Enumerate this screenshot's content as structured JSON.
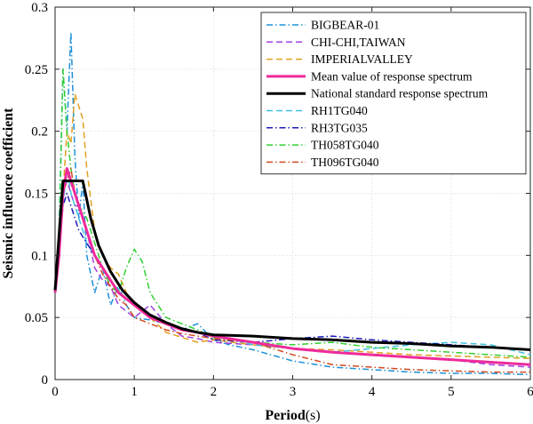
{
  "chart_data": {
    "type": "line",
    "xlabel": "Period",
    "xunit": "(s)",
    "ylabel": "Seismic influence coefficient",
    "xlim": [
      0,
      6
    ],
    "ylim": [
      0,
      0.3
    ],
    "xticks": [
      0,
      1,
      2,
      3,
      4,
      5,
      6
    ],
    "yticks": [
      0,
      0.05,
      0.1,
      0.15,
      0.2,
      0.25,
      0.3
    ],
    "xtick_labels": [
      "0",
      "1",
      "2",
      "3",
      "4",
      "5",
      "6"
    ],
    "ytick_labels": [
      "0",
      "0.05",
      "0.1",
      "0.15",
      "0.2",
      "0.25",
      "0.3"
    ],
    "grid": true,
    "legend_position": "top-right",
    "series": [
      {
        "name": "BIGBEAR-01",
        "color": "#1e90d8",
        "dash": "dashdot",
        "width": 1.5,
        "x": [
          0,
          0.05,
          0.1,
          0.15,
          0.2,
          0.25,
          0.3,
          0.35,
          0.4,
          0.5,
          0.6,
          0.7,
          0.8,
          0.9,
          1.0,
          1.2,
          1.4,
          1.6,
          1.8,
          2.0,
          2.2,
          2.5,
          3.0,
          3.5,
          4.0,
          4.5,
          5.0,
          5.5,
          6.0
        ],
        "y": [
          0.07,
          0.12,
          0.25,
          0.2,
          0.28,
          0.18,
          0.13,
          0.16,
          0.1,
          0.07,
          0.09,
          0.06,
          0.075,
          0.06,
          0.05,
          0.048,
          0.045,
          0.04,
          0.045,
          0.032,
          0.028,
          0.024,
          0.015,
          0.01,
          0.008,
          0.006,
          0.005,
          0.005,
          0.004
        ]
      },
      {
        "name": "CHI-CHI,TAIWAN",
        "color": "#a040e0",
        "dash": "dash",
        "width": 1.5,
        "x": [
          0,
          0.05,
          0.1,
          0.15,
          0.2,
          0.25,
          0.3,
          0.4,
          0.5,
          0.6,
          0.7,
          0.8,
          0.9,
          1.0,
          1.2,
          1.4,
          1.6,
          1.8,
          2.0,
          2.5,
          3.0,
          3.5,
          4.0,
          4.5,
          5.0,
          5.5,
          6.0
        ],
        "y": [
          0.07,
          0.1,
          0.15,
          0.16,
          0.15,
          0.14,
          0.14,
          0.12,
          0.09,
          0.08,
          0.075,
          0.06,
          0.055,
          0.05,
          0.06,
          0.045,
          0.035,
          0.033,
          0.03,
          0.028,
          0.025,
          0.022,
          0.02,
          0.018,
          0.016,
          0.012,
          0.01
        ]
      },
      {
        "name": "IMPERIALVALLEY",
        "color": "#e0a020",
        "dash": "dash",
        "width": 1.5,
        "x": [
          0,
          0.05,
          0.1,
          0.15,
          0.2,
          0.25,
          0.3,
          0.35,
          0.4,
          0.5,
          0.6,
          0.7,
          0.8,
          0.9,
          1.0,
          1.2,
          1.4,
          1.6,
          1.8,
          2.0,
          2.5,
          3.0,
          3.5,
          4.0,
          4.5,
          5.0,
          5.5,
          6.0
        ],
        "y": [
          0.07,
          0.1,
          0.15,
          0.2,
          0.19,
          0.23,
          0.22,
          0.21,
          0.17,
          0.12,
          0.1,
          0.09,
          0.085,
          0.07,
          0.06,
          0.05,
          0.038,
          0.034,
          0.03,
          0.032,
          0.028,
          0.025,
          0.024,
          0.022,
          0.02,
          0.019,
          0.018,
          0.017
        ]
      },
      {
        "name": "Mean value of response spectrum",
        "color": "#ee2a9b",
        "dash": "solid",
        "width": 3,
        "x": [
          0,
          0.05,
          0.1,
          0.15,
          0.2,
          0.25,
          0.3,
          0.4,
          0.5,
          0.6,
          0.7,
          0.8,
          0.9,
          1.0,
          1.2,
          1.4,
          1.6,
          1.8,
          2.0,
          2.5,
          3.0,
          3.5,
          4.0,
          4.5,
          5.0,
          5.5,
          6.0
        ],
        "y": [
          0.07,
          0.1,
          0.15,
          0.17,
          0.16,
          0.15,
          0.14,
          0.12,
          0.1,
          0.09,
          0.08,
          0.07,
          0.065,
          0.06,
          0.05,
          0.045,
          0.04,
          0.038,
          0.035,
          0.03,
          0.025,
          0.022,
          0.02,
          0.018,
          0.016,
          0.014,
          0.012
        ]
      },
      {
        "name": "National standard response spectrum",
        "color": "#000000",
        "dash": "solid",
        "width": 3,
        "x": [
          0,
          0.1,
          0.35,
          0.45,
          0.55,
          0.7,
          0.85,
          1.0,
          1.2,
          1.4,
          1.6,
          1.8,
          2.0,
          2.5,
          3.0,
          3.5,
          4.0,
          4.5,
          5.0,
          5.5,
          6.0
        ],
        "y": [
          0.072,
          0.16,
          0.16,
          0.13,
          0.108,
          0.087,
          0.072,
          0.062,
          0.052,
          0.046,
          0.041,
          0.038,
          0.036,
          0.035,
          0.033,
          0.032,
          0.03,
          0.029,
          0.027,
          0.026,
          0.024
        ]
      },
      {
        "name": "RH1TG040",
        "color": "#40c0e0",
        "dash": "dash",
        "width": 1.5,
        "x": [
          0,
          0.05,
          0.1,
          0.15,
          0.2,
          0.25,
          0.3,
          0.4,
          0.5,
          0.6,
          0.7,
          0.8,
          0.9,
          1.0,
          1.2,
          1.4,
          1.6,
          1.8,
          2.0,
          2.5,
          3.0,
          3.5,
          4.0,
          4.5,
          5.0,
          5.5,
          6.0
        ],
        "y": [
          0.07,
          0.11,
          0.14,
          0.17,
          0.15,
          0.14,
          0.13,
          0.11,
          0.1,
          0.09,
          0.08,
          0.072,
          0.065,
          0.06,
          0.052,
          0.045,
          0.04,
          0.038,
          0.036,
          0.028,
          0.025,
          0.022,
          0.025,
          0.028,
          0.03,
          0.028,
          0.02
        ]
      },
      {
        "name": "RH3TG035",
        "color": "#1a1ab8",
        "dash": "dashdot",
        "width": 1.5,
        "x": [
          0,
          0.05,
          0.1,
          0.15,
          0.2,
          0.25,
          0.3,
          0.4,
          0.5,
          0.6,
          0.7,
          0.8,
          0.9,
          1.0,
          1.2,
          1.4,
          1.6,
          1.8,
          2.0,
          2.5,
          3.0,
          3.5,
          4.0,
          4.5,
          5.0,
          5.5,
          6.0
        ],
        "y": [
          0.07,
          0.1,
          0.14,
          0.15,
          0.14,
          0.13,
          0.12,
          0.11,
          0.1,
          0.09,
          0.08,
          0.07,
          0.065,
          0.06,
          0.05,
          0.045,
          0.04,
          0.038,
          0.032,
          0.03,
          0.033,
          0.035,
          0.032,
          0.03,
          0.028,
          0.026,
          0.024
        ]
      },
      {
        "name": "TH058TG040",
        "color": "#30d030",
        "dash": "dashdot",
        "width": 1.5,
        "x": [
          0,
          0.05,
          0.1,
          0.15,
          0.2,
          0.25,
          0.3,
          0.4,
          0.5,
          0.6,
          0.7,
          0.8,
          0.9,
          1.0,
          1.1,
          1.2,
          1.4,
          1.6,
          1.8,
          2.0,
          2.5,
          3.0,
          3.5,
          4.0,
          4.5,
          5.0,
          5.5,
          6.0
        ],
        "y": [
          0.07,
          0.11,
          0.25,
          0.2,
          0.17,
          0.15,
          0.14,
          0.13,
          0.11,
          0.09,
          0.075,
          0.07,
          0.09,
          0.105,
          0.095,
          0.07,
          0.05,
          0.045,
          0.04,
          0.034,
          0.03,
          0.028,
          0.03,
          0.026,
          0.024,
          0.022,
          0.02,
          0.018
        ]
      },
      {
        "name": "TH096TG040",
        "color": "#d04a20",
        "dash": "dashdot",
        "width": 1.5,
        "x": [
          0,
          0.05,
          0.1,
          0.15,
          0.2,
          0.25,
          0.3,
          0.4,
          0.5,
          0.6,
          0.7,
          0.8,
          0.9,
          1.0,
          1.2,
          1.4,
          1.6,
          1.8,
          2.0,
          2.5,
          3.0,
          3.5,
          4.0,
          4.5,
          5.0,
          5.5,
          6.0
        ],
        "y": [
          0.07,
          0.1,
          0.15,
          0.16,
          0.17,
          0.15,
          0.14,
          0.12,
          0.1,
          0.085,
          0.075,
          0.065,
          0.06,
          0.05,
          0.045,
          0.04,
          0.037,
          0.035,
          0.033,
          0.03,
          0.02,
          0.012,
          0.01,
          0.008,
          0.007,
          0.006,
          0.006
        ]
      }
    ]
  }
}
